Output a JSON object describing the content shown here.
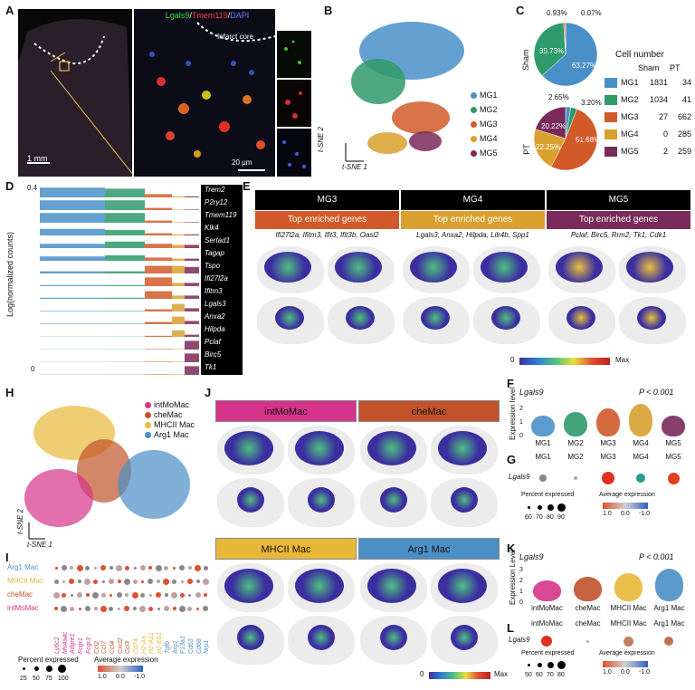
{
  "panels": {
    "A": "A",
    "B": "B",
    "C": "C",
    "D": "D",
    "E": "E",
    "F": "F",
    "G": "G",
    "H": "H",
    "I": "I",
    "J": "J",
    "K": "K",
    "L": "L"
  },
  "panelA": {
    "stain_lgals9": "Lgals9",
    "stain_tmem119": "Tmem119",
    "stain_dapi": "DAPI",
    "sep1": "/",
    "sep2": "/",
    "infarct_label": "Infarct core",
    "scale_left": "1 mm",
    "scale_right": "20 μm"
  },
  "panelB": {
    "clusters": [
      {
        "name": "MG1",
        "color": "#4a90c8"
      },
      {
        "name": "MG2",
        "color": "#2f9a6a"
      },
      {
        "name": "MG3",
        "color": "#d25a2a"
      },
      {
        "name": "MG4",
        "color": "#d9a030"
      },
      {
        "name": "MG5",
        "color": "#7a2a5a"
      }
    ],
    "axis_x": "t-SNE 1",
    "axis_y": "t-SNE 2"
  },
  "panelC": {
    "header": "Cell number",
    "col_sham": "Sham",
    "col_pt": "PT",
    "row_sham": "Sham",
    "row_pt": "PT",
    "rows": [
      {
        "name": "MG1",
        "sham": "1831",
        "pt": "34"
      },
      {
        "name": "MG2",
        "sham": "1034",
        "pt": "41"
      },
      {
        "name": "MG3",
        "sham": "27",
        "pt": "662"
      },
      {
        "name": "MG4",
        "sham": "0",
        "pt": "285"
      },
      {
        "name": "MG5",
        "sham": "2",
        "pt": "259"
      }
    ],
    "sham_labels": {
      "l1": "0.93%",
      "l2": "0.07%",
      "l3": "35.73%",
      "l4": "63.27%"
    },
    "pt_labels": {
      "l1": "2.65%",
      "l2": "3.20%",
      "l3": "20.22%",
      "l4": "22.25%",
      "l5": "51.68%"
    }
  },
  "chart_data": [
    {
      "type": "pie",
      "title": "Sham",
      "categories": [
        "MG1",
        "MG2",
        "MG3",
        "MG4",
        "MG5"
      ],
      "values": [
        63.27,
        35.73,
        0.93,
        0.0,
        0.07
      ]
    },
    {
      "type": "pie",
      "title": "PT",
      "categories": [
        "MG1",
        "MG2",
        "MG3",
        "MG4",
        "MG5"
      ],
      "values": [
        2.65,
        3.2,
        51.68,
        22.25,
        20.22
      ]
    }
  ],
  "panelD": {
    "ylabel": "Log(normalized counts)",
    "tick0": "0",
    "tick1": "0.4",
    "genes": [
      "Trem2",
      "P2ry12",
      "Tmem119",
      "Klk4",
      "Sertad1",
      "Tagap",
      "Tspo",
      "Ifi27l2a",
      "Ifitm3",
      "Lgals3",
      "Anxa2",
      "Hilpda",
      "Pclaf",
      "Birc5",
      "Tk1"
    ]
  },
  "panelE": {
    "headers": [
      "MG3",
      "MG4",
      "MG5"
    ],
    "subheader": "Top enriched genes",
    "genes": [
      "Ifi27l2a, Ifitm3, Ifit3, Ifit3b, Oasl2",
      "Lgals3, Anxa2, Hilpda, Lilr4b, Spp1",
      "Pclaf, Birc5, Rrm2, Tk1, Cdk1"
    ],
    "scale_min": "0",
    "scale_max": "Max"
  },
  "panelF": {
    "gene": "Lgals9",
    "pvalue": "P < 0.001",
    "ylabel": "Expression level",
    "ticks": [
      "0",
      "1",
      "2"
    ],
    "categories": [
      "MG1",
      "MG2",
      "MG3",
      "MG4",
      "MG5"
    ]
  },
  "panelG": {
    "categories": [
      "MG1",
      "MG2",
      "MG3",
      "MG4",
      "MG5"
    ],
    "gene": "Lgals9",
    "pct_label": "Percent expressed",
    "pct_ticks": [
      "60",
      "70",
      "80",
      "90"
    ],
    "avg_label": "Average expression",
    "avg_ticks": [
      "1.0",
      "0.0",
      "-1.0"
    ]
  },
  "panelH": {
    "legend": [
      {
        "name": "intMoMac",
        "color": "#d6338a"
      },
      {
        "name": "cheMac",
        "color": "#c2522a"
      },
      {
        "name": "MHCII Mac",
        "color": "#e8b838"
      },
      {
        "name": "Arg1 Mac",
        "color": "#4a8fc6"
      }
    ],
    "axis_x": "t-SNE 1",
    "axis_y": "t-SNE 2"
  },
  "panelI": {
    "rows": [
      "Arg1 Mac",
      "MHCII Mac",
      "cheMac",
      "intMoMac"
    ],
    "genes": [
      "Ly6c2",
      "Ms4a4c",
      "Adgre1",
      "Fcgr1",
      "Fcgr3",
      "Ccl2",
      "Ccl7",
      "Ccl4",
      "Cxcl2",
      "Ccl3",
      "Cd74",
      "H2-Aa",
      "H2-Ab1",
      "H2-Eb1",
      "Tgfb",
      "Arg1",
      "F13a1",
      "Cd63",
      "Cd68",
      "Nrp1"
    ],
    "pct_label": "Percent expressed",
    "pct_ticks": [
      "25",
      "50",
      "75",
      "100"
    ],
    "avg_label": "Average expression",
    "avg_ticks": [
      "1.0",
      "0.0",
      "-1.0"
    ]
  },
  "panelJ": {
    "headers": [
      "intMoMac",
      "cheMac",
      "MHCII Mac",
      "Arg1 Mac"
    ],
    "scale_min": "0",
    "scale_max": "Max"
  },
  "panelK": {
    "gene": "Lgals9",
    "pvalue": "P < 0.001",
    "ylabel": "Expression Level",
    "ticks": [
      "0",
      "1",
      "2",
      "3"
    ],
    "categories": [
      "intMoMac",
      "cheMac",
      "MHCII Mac",
      "Arg1 Mac"
    ]
  },
  "panelL": {
    "categories": [
      "intMoMac",
      "cheMac",
      "MHCII Mac",
      "Arg1 Mac"
    ],
    "gene": "Lgals9",
    "pct_label": "Percent expressed",
    "pct_ticks": [
      "50",
      "60",
      "70",
      "80"
    ],
    "avg_label": "Average expression",
    "avg_ticks": [
      "1.0",
      "0.0",
      "-1.0"
    ]
  },
  "colors": {
    "mg1": "#4a90c8",
    "mg2": "#2f9a6a",
    "mg3": "#d25a2a",
    "mg4": "#d9a030",
    "mg5": "#7a2a5a",
    "int": "#d6338a",
    "che": "#c2522a",
    "mhc": "#e8b838",
    "arg": "#4a8fc6"
  }
}
